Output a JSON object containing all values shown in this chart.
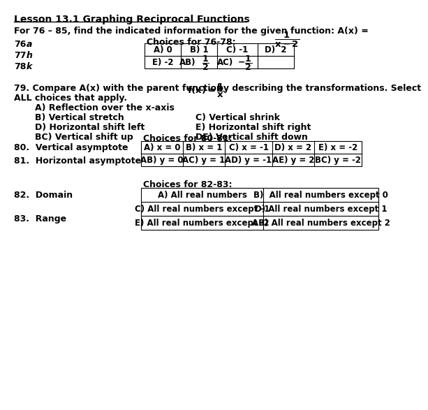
{
  "title": "Lesson 13.1 Graphing Reciprocal Functions",
  "bg_color": "#ffffff",
  "choices_79_col1": [
    "A) Reflection over the x-axis",
    "B) Vertical stretch",
    "D) Horizontal shift left",
    "BC) Vertical shift up"
  ],
  "choices_79_col2": [
    "",
    "C) Vertical shrink",
    "E) Horizontal shift right",
    "DE) Vertical shift down"
  ],
  "choices_8081_row1": [
    "A) x = 0",
    "B) x = 1",
    "C) x = -1",
    "D) x = 2",
    "E) x = -2"
  ],
  "choices_8081_row2": [
    "AB) y = 0",
    "AC) y = 1",
    "AD) y = -1",
    "AE) y = 2",
    "BC) y = -2"
  ],
  "choices_8283": [
    [
      "A) All real numbers",
      "B)  All real numbers except 0"
    ],
    [
      "C) All real numbers except -1",
      "D) All real numbers except 1"
    ],
    [
      "E) All real numbers except -2",
      "AB) All real numbers except 2"
    ]
  ]
}
